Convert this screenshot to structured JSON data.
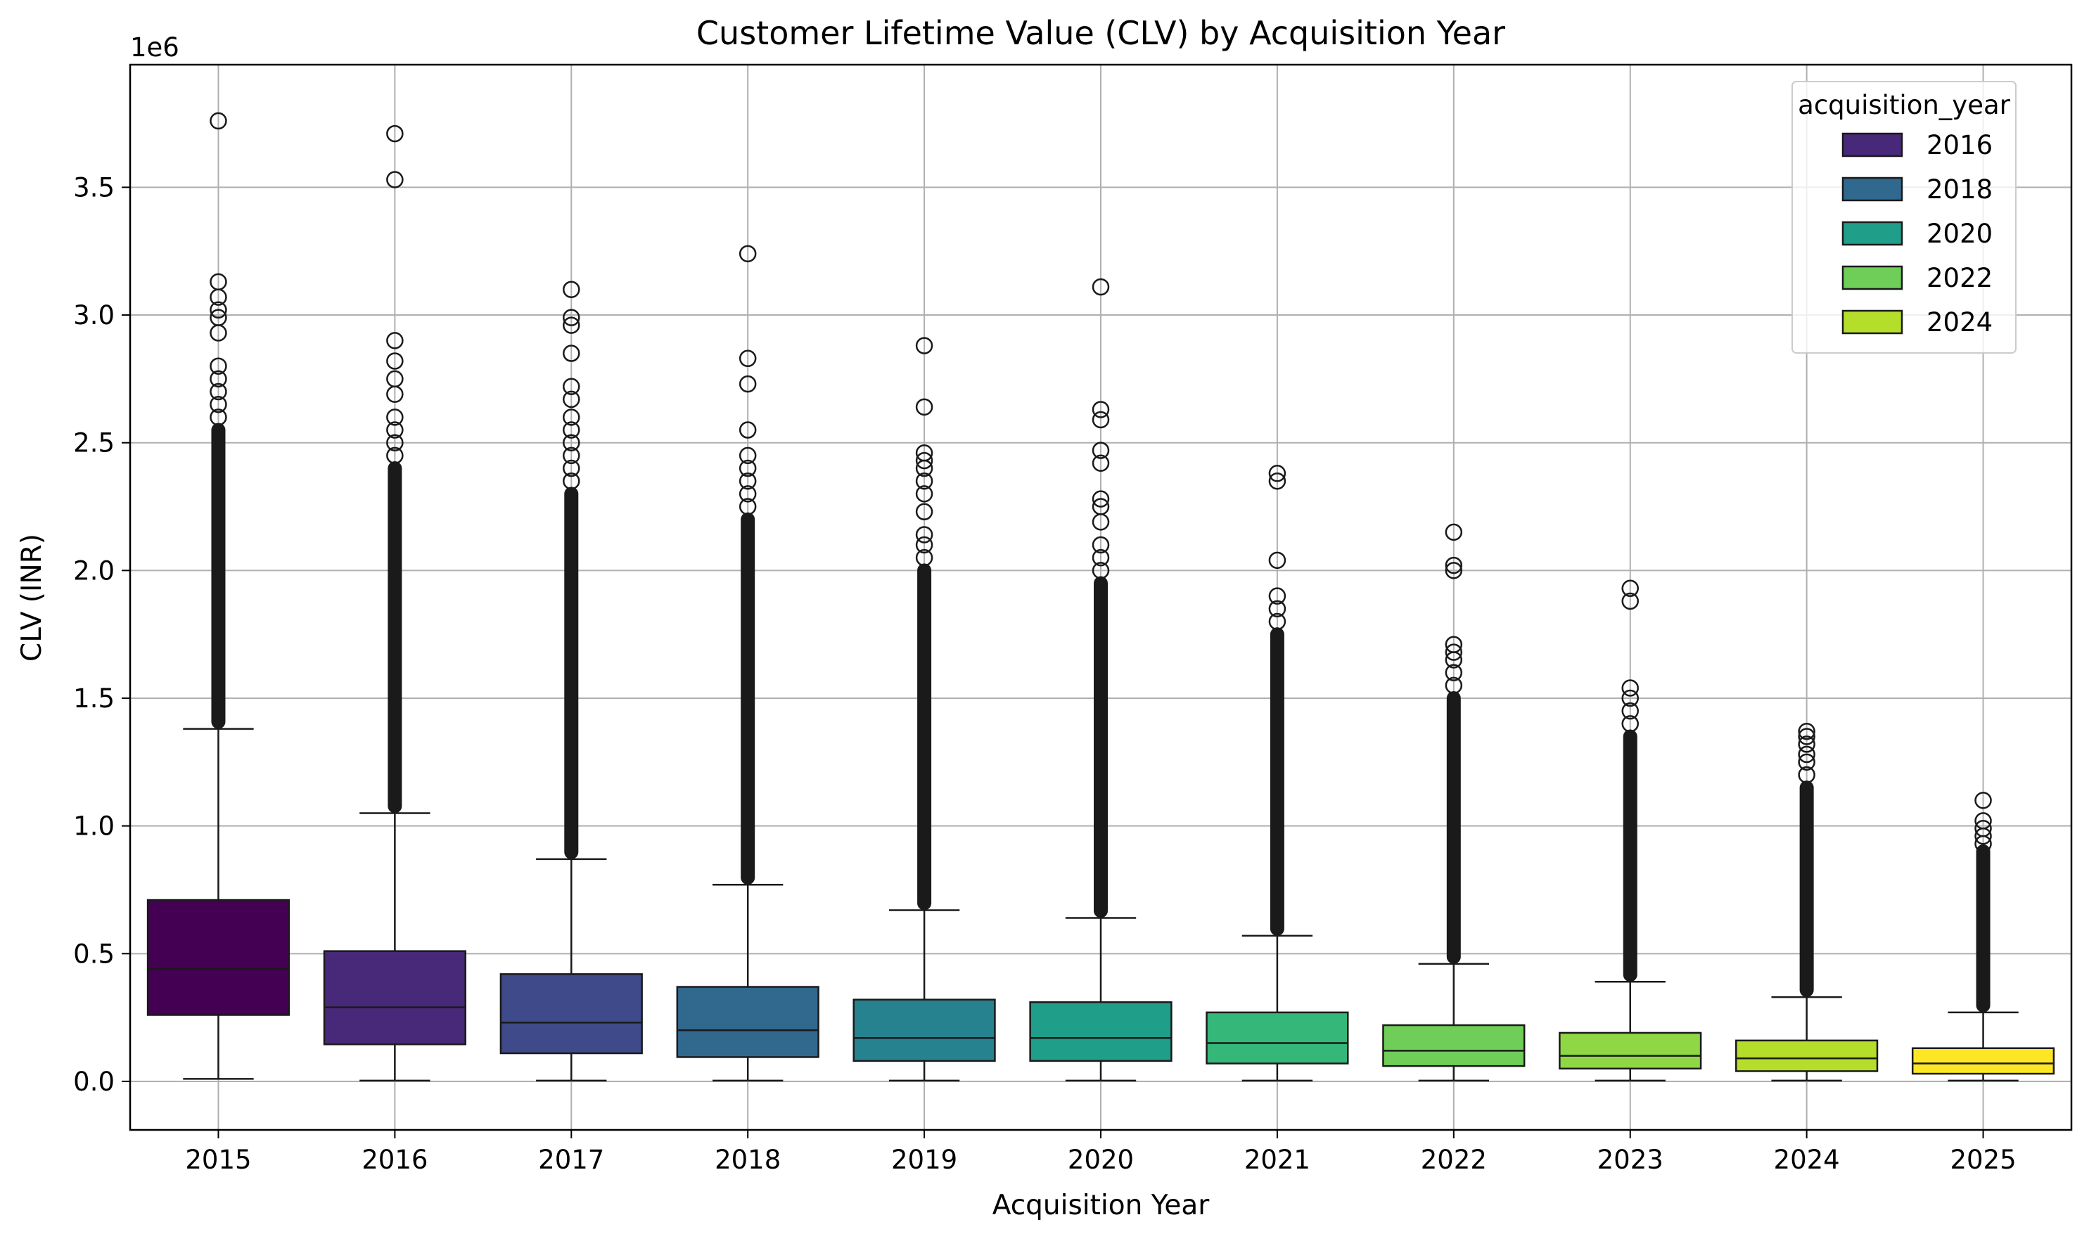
{
  "chart_data": {
    "type": "box",
    "title": "Customer Lifetime Value (CLV) by Acquisition Year",
    "xlabel": "Acquisition Year",
    "ylabel": "CLV (INR)",
    "y_offset_label": "1e6",
    "y_multiplier": 1000000,
    "ylim": [
      -0.19,
      3.98
    ],
    "yticks": [
      0.0,
      0.5,
      1.0,
      1.5,
      2.0,
      2.5,
      3.0,
      3.5
    ],
    "ytick_labels": [
      "0.0",
      "0.5",
      "1.0",
      "1.5",
      "2.0",
      "2.5",
      "3.0",
      "3.5"
    ],
    "grid": true,
    "categories": [
      "2015",
      "2016",
      "2017",
      "2018",
      "2019",
      "2020",
      "2021",
      "2022",
      "2023",
      "2024",
      "2025"
    ],
    "boxes": [
      {
        "category": "2015",
        "color": "#440154",
        "whisker_low": 0.01,
        "q1": 0.26,
        "median": 0.44,
        "q3": 0.71,
        "whisker_high": 1.38,
        "dense_outliers_to": 2.55,
        "outliers": [
          2.6,
          2.65,
          2.7,
          2.75,
          2.8,
          2.93,
          2.99,
          3.02,
          3.07,
          3.13,
          3.76
        ]
      },
      {
        "category": "2016",
        "color": "#482878",
        "whisker_low": 0.003,
        "q1": 0.145,
        "median": 0.29,
        "q3": 0.51,
        "whisker_high": 1.05,
        "dense_outliers_to": 2.4,
        "outliers": [
          2.45,
          2.5,
          2.55,
          2.6,
          2.69,
          2.75,
          2.82,
          2.9,
          3.53,
          3.71
        ]
      },
      {
        "category": "2017",
        "color": "#3e4a89",
        "whisker_low": 0.003,
        "q1": 0.11,
        "median": 0.23,
        "q3": 0.42,
        "whisker_high": 0.87,
        "dense_outliers_to": 2.3,
        "outliers": [
          2.35,
          2.4,
          2.45,
          2.5,
          2.55,
          2.6,
          2.67,
          2.72,
          2.85,
          2.96,
          2.99,
          3.1
        ]
      },
      {
        "category": "2018",
        "color": "#31688e",
        "whisker_low": 0.003,
        "q1": 0.095,
        "median": 0.2,
        "q3": 0.37,
        "whisker_high": 0.77,
        "dense_outliers_to": 2.2,
        "outliers": [
          2.25,
          2.3,
          2.35,
          2.4,
          2.45,
          2.55,
          2.73,
          2.83,
          3.24
        ]
      },
      {
        "category": "2019",
        "color": "#26828e",
        "whisker_low": 0.003,
        "q1": 0.08,
        "median": 0.17,
        "q3": 0.32,
        "whisker_high": 0.67,
        "dense_outliers_to": 2.0,
        "outliers": [
          2.05,
          2.1,
          2.14,
          2.23,
          2.3,
          2.35,
          2.4,
          2.43,
          2.46,
          2.64,
          2.88
        ]
      },
      {
        "category": "2020",
        "color": "#1f9e89",
        "whisker_low": 0.003,
        "q1": 0.08,
        "median": 0.17,
        "q3": 0.31,
        "whisker_high": 0.64,
        "dense_outliers_to": 1.95,
        "outliers": [
          2.0,
          2.05,
          2.1,
          2.19,
          2.25,
          2.28,
          2.42,
          2.47,
          2.59,
          2.63,
          3.11
        ]
      },
      {
        "category": "2021",
        "color": "#35b779",
        "whisker_low": 0.003,
        "q1": 0.07,
        "median": 0.15,
        "q3": 0.27,
        "whisker_high": 0.57,
        "dense_outliers_to": 1.75,
        "outliers": [
          1.8,
          1.85,
          1.9,
          2.04,
          2.35,
          2.38
        ]
      },
      {
        "category": "2022",
        "color": "#6ece58",
        "whisker_low": 0.003,
        "q1": 0.06,
        "median": 0.12,
        "q3": 0.22,
        "whisker_high": 0.46,
        "dense_outliers_to": 1.5,
        "outliers": [
          1.55,
          1.6,
          1.65,
          1.68,
          1.71,
          2.0,
          2.02,
          2.15
        ]
      },
      {
        "category": "2023",
        "color": "#8fd744",
        "whisker_low": 0.003,
        "q1": 0.05,
        "median": 0.1,
        "q3": 0.19,
        "whisker_high": 0.39,
        "dense_outliers_to": 1.35,
        "outliers": [
          1.4,
          1.45,
          1.5,
          1.54,
          1.88,
          1.93
        ]
      },
      {
        "category": "2024",
        "color": "#b5de2b",
        "whisker_low": 0.003,
        "q1": 0.04,
        "median": 0.09,
        "q3": 0.16,
        "whisker_high": 0.33,
        "dense_outliers_to": 1.15,
        "outliers": [
          1.2,
          1.25,
          1.28,
          1.32,
          1.35,
          1.37
        ]
      },
      {
        "category": "2025",
        "color": "#fde725",
        "whisker_low": 0.003,
        "q1": 0.03,
        "median": 0.07,
        "q3": 0.13,
        "whisker_high": 0.27,
        "dense_outliers_to": 0.9,
        "outliers": [
          0.93,
          0.96,
          0.99,
          1.02,
          1.1
        ]
      }
    ],
    "legend": {
      "title": "acquisition_year",
      "position": "top-right",
      "entries": [
        {
          "label": "2016",
          "color": "#482878"
        },
        {
          "label": "2018",
          "color": "#31688e"
        },
        {
          "label": "2020",
          "color": "#1f9e89"
        },
        {
          "label": "2022",
          "color": "#6ece58"
        },
        {
          "label": "2024",
          "color": "#b5de2b"
        }
      ]
    }
  }
}
